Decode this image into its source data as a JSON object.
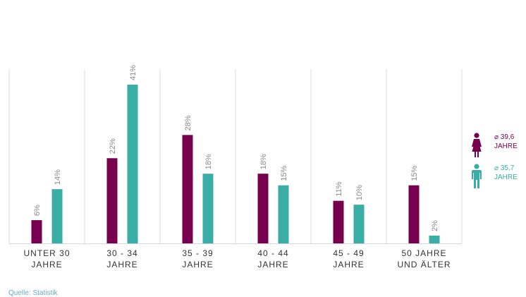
{
  "colors": {
    "female": "#77004f",
    "male": "#3aaea6",
    "gridline": "#d9dee6",
    "baseline": "#d0d6de",
    "value_label": "#8a8a8a",
    "category_label": "#333333"
  },
  "chart_data": {
    "type": "bar",
    "title": "",
    "xlabel": "",
    "ylabel": "",
    "ylim": [
      0,
      41
    ],
    "categories": [
      [
        "UNTER 30",
        "JAHRE"
      ],
      [
        "30 - 34",
        "JAHRE"
      ],
      [
        "35 - 39",
        "JAHRE"
      ],
      [
        "40 - 44",
        "JAHRE"
      ],
      [
        "45 - 49",
        "JAHRE"
      ],
      [
        "50 JAHRE",
        "UND ÄLTER"
      ]
    ],
    "series": [
      {
        "name": "Frauen",
        "values": [
          6,
          22,
          28,
          18,
          11,
          15
        ],
        "labels": [
          "6%",
          "22%",
          "28%",
          "18%",
          "11%",
          "15%"
        ]
      },
      {
        "name": "Männer",
        "values": [
          14,
          41,
          18,
          15,
          10,
          2
        ],
        "labels": [
          "14%",
          "41%",
          "18%",
          "15%",
          "10%",
          "2%"
        ]
      }
    ]
  },
  "legend": {
    "female": {
      "icon": "female-icon",
      "avg": "⌀ 39,6",
      "unit": "JAHRE"
    },
    "male": {
      "icon": "male-icon",
      "avg": "⌀ 35,7",
      "unit": "JAHRE"
    }
  },
  "source": "Quelle: Statistik"
}
